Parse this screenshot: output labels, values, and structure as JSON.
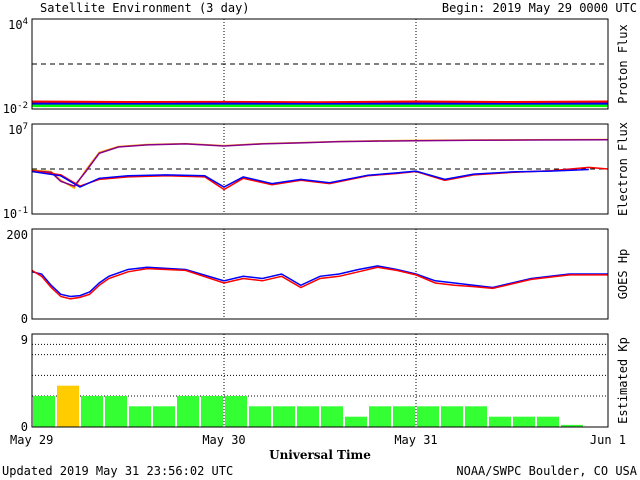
{
  "header": {
    "title": "Satellite Environment (3 day)",
    "begin": "Begin:  2019 May 29 0000 UTC"
  },
  "footer": {
    "updated": "Updated 2019 May 31 23:56:02 UTC",
    "credit": "NOAA/SWPC Boulder, CO USA"
  },
  "colors": {
    "red": "#ff0000",
    "blue": "#0000ff",
    "green": "#00ff00",
    "orange": "#ffa500",
    "darkred": "#cc0000",
    "kp_green": "#33ff33",
    "kp_yellow": "#ffcc00"
  },
  "chart_data": [
    {
      "type": "line",
      "ylabel": "Proton Flux",
      "yscale": "log",
      "ylim": [
        0.01,
        10000
      ],
      "ytick_labels": [
        "10^4",
        "10^-2"
      ],
      "threshold": 10,
      "series": [
        {
          "color": "#ff0000",
          "x": [
            0,
            0.5,
            1,
            1.5,
            2,
            2.5,
            3
          ],
          "values": [
            0.03,
            0.028,
            0.029,
            0.027,
            0.03,
            0.028,
            0.03
          ]
        },
        {
          "color": "#0000ff",
          "x": [
            0,
            0.5,
            1,
            1.5,
            2,
            2.5,
            3
          ],
          "values": [
            0.022,
            0.021,
            0.022,
            0.021,
            0.022,
            0.021,
            0.022
          ]
        },
        {
          "color": "#00ff00",
          "x": [
            0,
            0.5,
            1,
            1.5,
            2,
            2.5,
            3
          ],
          "values": [
            0.016,
            0.016,
            0.016,
            0.016,
            0.016,
            0.016,
            0.016
          ]
        }
      ]
    },
    {
      "type": "line",
      "ylabel": "Electron Flux",
      "yscale": "log",
      "ylim": [
        0.1,
        10000000
      ],
      "ytick_labels": [
        "10^7",
        "10^-1"
      ],
      "threshold": 1000,
      "series": [
        {
          "color": "#ffa500",
          "x": [
            0,
            0.1,
            0.15,
            0.22,
            0.28,
            0.35,
            0.45,
            0.6,
            0.8,
            1.0,
            1.2,
            1.4,
            1.6,
            1.8,
            2.0,
            2.3,
            2.6,
            3.0
          ],
          "values": [
            800,
            600,
            100,
            20,
            800,
            30000,
            100000,
            150000,
            180000,
            120000,
            180000,
            220000,
            280000,
            320000,
            350000,
            380000,
            400000,
            420000
          ]
        },
        {
          "color": "#880088",
          "x": [
            0,
            0.1,
            0.15,
            0.22,
            0.28,
            0.35,
            0.45,
            0.6,
            0.8,
            1.0,
            1.2,
            1.4,
            1.6,
            1.8,
            2.0,
            2.3,
            2.6,
            3.0
          ],
          "values": [
            700,
            500,
            80,
            30,
            600,
            25000,
            90000,
            140000,
            170000,
            110000,
            170000,
            210000,
            270000,
            300000,
            330000,
            360000,
            380000,
            400000
          ]
        },
        {
          "color": "#ff0000",
          "x": [
            0,
            0.15,
            0.25,
            0.35,
            0.5,
            0.7,
            0.9,
            1.0,
            1.1,
            1.25,
            1.4,
            1.55,
            1.75,
            1.9,
            2.0,
            2.15,
            2.3,
            2.5,
            2.7,
            2.9,
            3.0
          ],
          "values": [
            700,
            300,
            30,
            120,
            200,
            250,
            200,
            15,
            150,
            40,
            100,
            50,
            250,
            400,
            600,
            100,
            300,
            500,
            700,
            1400,
            1000
          ]
        },
        {
          "color": "#0000ff",
          "x": [
            0,
            0.15,
            0.25,
            0.35,
            0.5,
            0.7,
            0.9,
            1.0,
            1.1,
            1.25,
            1.4,
            1.55,
            1.75,
            1.9,
            2.0,
            2.15,
            2.3,
            2.5,
            2.7,
            2.9
          ],
          "values": [
            600,
            250,
            25,
            150,
            250,
            300,
            250,
            25,
            200,
            50,
            120,
            60,
            280,
            450,
            650,
            120,
            350,
            550,
            650,
            900
          ]
        }
      ]
    },
    {
      "type": "line",
      "ylabel": "GOES Hp",
      "ylim": [
        0,
        200
      ],
      "ytick_labels": [
        "200",
        "0"
      ],
      "series": [
        {
          "color": "#0000ff",
          "x": [
            0,
            0.05,
            0.1,
            0.15,
            0.2,
            0.25,
            0.3,
            0.35,
            0.4,
            0.5,
            0.6,
            0.8,
            1.0,
            1.1,
            1.2,
            1.3,
            1.4,
            1.5,
            1.6,
            1.7,
            1.8,
            1.9,
            2.0,
            2.1,
            2.2,
            2.3,
            2.4,
            2.5,
            2.6,
            2.8,
            3.0
          ],
          "values": [
            105,
            100,
            75,
            55,
            50,
            52,
            60,
            80,
            95,
            110,
            115,
            110,
            85,
            95,
            90,
            100,
            75,
            95,
            100,
            110,
            118,
            110,
            100,
            85,
            80,
            75,
            70,
            80,
            90,
            100,
            100
          ]
        },
        {
          "color": "#ff0000",
          "x": [
            0,
            0.05,
            0.1,
            0.15,
            0.2,
            0.25,
            0.3,
            0.35,
            0.4,
            0.5,
            0.6,
            0.8,
            1.0,
            1.1,
            1.2,
            1.3,
            1.4,
            1.5,
            1.6,
            1.7,
            1.8,
            1.9,
            2.0,
            2.1,
            2.2,
            2.3,
            2.4,
            2.5,
            2.6,
            2.8,
            3.0
          ],
          "values": [
            108,
            95,
            70,
            50,
            45,
            48,
            55,
            75,
            90,
            105,
            112,
            108,
            80,
            90,
            85,
            95,
            70,
            90,
            95,
            105,
            115,
            108,
            98,
            80,
            75,
            72,
            68,
            78,
            88,
            98,
            98
          ]
        }
      ]
    },
    {
      "type": "bar",
      "ylabel": "Estimated Kp",
      "ylim": [
        0,
        9
      ],
      "ytick_labels": [
        "9",
        "0"
      ],
      "values": [
        3,
        4,
        3,
        3,
        2,
        2,
        3,
        3,
        3,
        2,
        2,
        2,
        2,
        1,
        2,
        2,
        2,
        2,
        2,
        1,
        1,
        1,
        0.2,
        0
      ],
      "bar_colors": [
        "#33ff33",
        "#ffcc00",
        "#33ff33",
        "#33ff33",
        "#33ff33",
        "#33ff33",
        "#33ff33",
        "#33ff33",
        "#33ff33",
        "#33ff33",
        "#33ff33",
        "#33ff33",
        "#33ff33",
        "#33ff33",
        "#33ff33",
        "#33ff33",
        "#33ff33",
        "#33ff33",
        "#33ff33",
        "#33ff33",
        "#33ff33",
        "#33ff33",
        "#33ff33",
        "#33ff33"
      ]
    }
  ],
  "xaxis": {
    "xlabel": "Universal Time",
    "xlim": [
      0,
      3
    ],
    "ticks": [
      {
        "x": 0,
        "label": "May 29"
      },
      {
        "x": 1,
        "label": "May 30"
      },
      {
        "x": 2,
        "label": "May 31"
      },
      {
        "x": 3,
        "label": "Jun 1"
      }
    ]
  }
}
